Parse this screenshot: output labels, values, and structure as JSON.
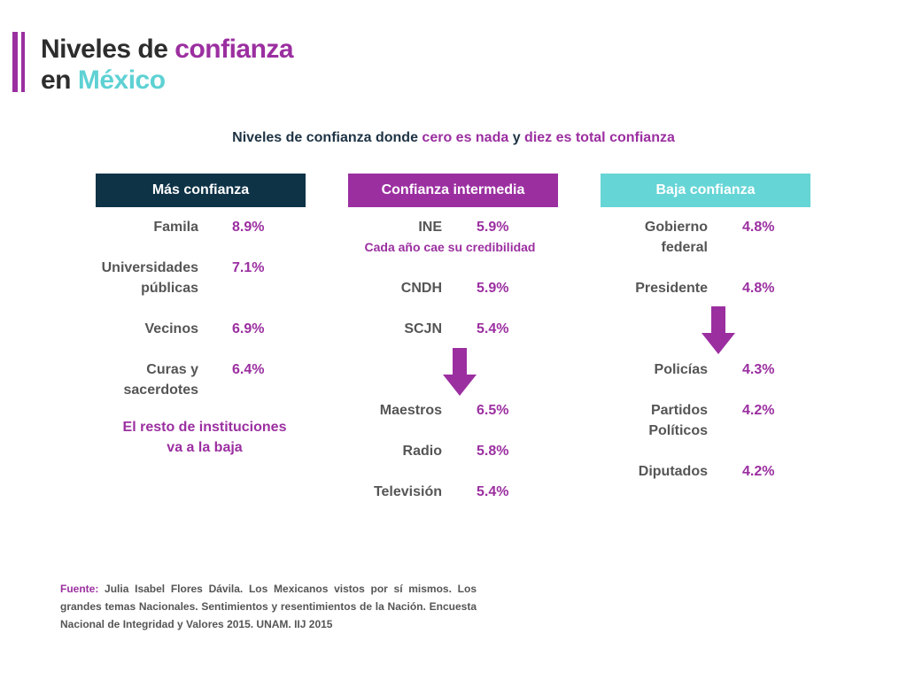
{
  "title": {
    "line1_a": "Niveles de ",
    "line1_b": "confianza",
    "line2_a": "en ",
    "line2_b": "México"
  },
  "subtitle": {
    "a": "Niveles de confianza donde ",
    "b": "cero es nada",
    "c": " y ",
    "d": "diez es total confianza"
  },
  "columns": [
    {
      "header": "Más confianza",
      "items": [
        {
          "label": "Famila",
          "value": "8.9%"
        },
        {
          "label": "Universidades públicas",
          "value": "7.1%"
        },
        {
          "label": "Vecinos",
          "value": "6.9%"
        },
        {
          "label": "Curas y sacerdotes",
          "value": "6.4%"
        }
      ],
      "note": "El resto de instituciones va a la baja"
    },
    {
      "header": "Confianza intermedia",
      "items": [
        {
          "label": "INE",
          "value": "5.9%"
        },
        {
          "label": "CNDH",
          "value": "5.9%"
        },
        {
          "label": "SCJN",
          "value": "5.4%"
        },
        {
          "label": "Maestros",
          "value": "6.5%"
        },
        {
          "label": "Radio",
          "value": "5.8%"
        },
        {
          "label": "Televisión",
          "value": "5.4%"
        }
      ],
      "note": "Cada año cae su credibilidad"
    },
    {
      "header": "Baja confianza",
      "items": [
        {
          "label": "Gobierno federal",
          "value": "4.8%"
        },
        {
          "label": "Presidente",
          "value": "4.8%"
        },
        {
          "label": "Policías",
          "value": "4.3%"
        },
        {
          "label": "Partidos Políticos",
          "value": "4.2%"
        },
        {
          "label": "Diputados",
          "value": "4.2%"
        }
      ]
    }
  ],
  "source": {
    "label": "Fuente:",
    "text": " Julia Isabel Flores Dávila. Los Mexicanos vistos por sí mismos. Los grandes temas Nacionales. Sentimientos y resentimientos de la Nación. Encuesta Nacional de Integridad y Valores 2015. UNAM. IIJ 2015"
  },
  "colors": {
    "purple": "#9b2fa0",
    "navy": "#0e3347",
    "teal": "#66d5d6"
  },
  "icons": [
    "down-arrow-icon"
  ]
}
